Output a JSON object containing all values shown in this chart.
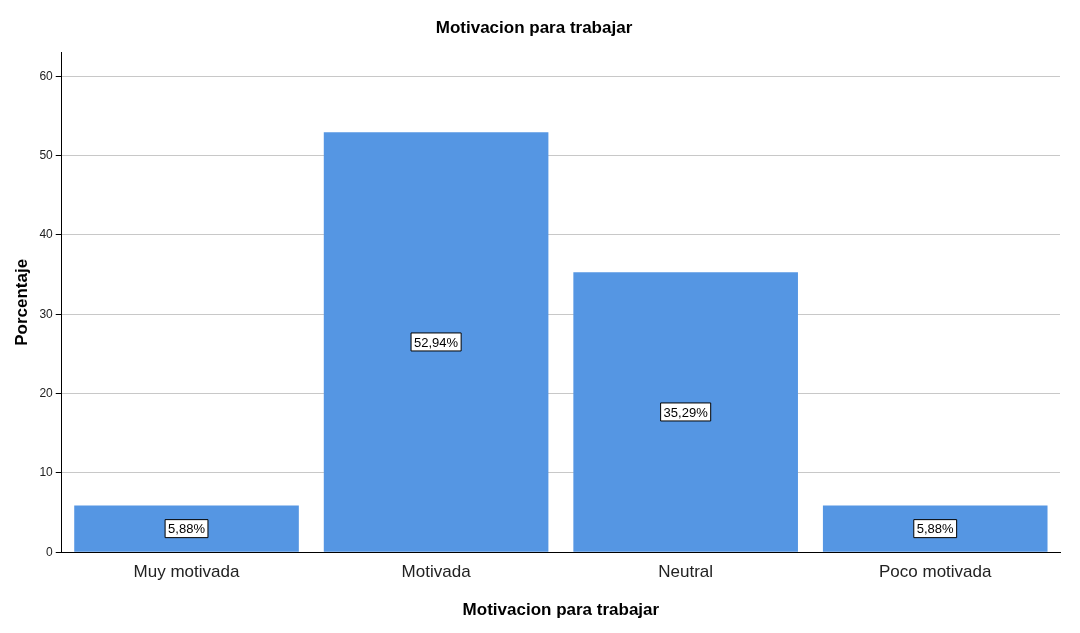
{
  "chart_data": {
    "type": "bar",
    "title": "Motivacion para trabajar",
    "xlabel": "Motivacion para trabajar",
    "ylabel": "Porcentaje",
    "categories": [
      "Muy motivada",
      "Motivada",
      "Neutral",
      "Poco motivada"
    ],
    "values": [
      5.88,
      52.94,
      35.29,
      5.88
    ],
    "value_labels": [
      "5,88%",
      "52,94%",
      "35,29%",
      "5,88%"
    ],
    "color": "#5596e3",
    "ylim": [
      0,
      63
    ],
    "yticks": [
      0,
      10,
      20,
      30,
      40,
      50,
      60
    ],
    "grid": "y",
    "legend": false
  }
}
